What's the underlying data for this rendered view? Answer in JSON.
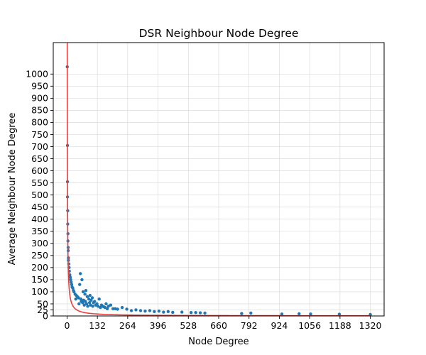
{
  "chart_data": {
    "type": "scatter",
    "title": "DSR Neighbour Node Degree",
    "xlabel": "Node Degree",
    "ylabel": "Average Neighbour Node Degree",
    "xlim": [
      -60,
      1380
    ],
    "ylim": [
      0,
      1130
    ],
    "xticks": [
      0,
      132,
      264,
      396,
      528,
      660,
      792,
      924,
      1056,
      1188,
      1320
    ],
    "yticks": [
      0,
      25,
      50,
      100,
      150,
      200,
      250,
      300,
      350,
      400,
      450,
      500,
      550,
      600,
      650,
      700,
      750,
      800,
      850,
      900,
      950,
      1000
    ],
    "grid": true,
    "colors": {
      "points": "#1f77b4",
      "fit": "#e8403f"
    },
    "fit_curve": {
      "form": "y = a / x",
      "a": 1060
    },
    "series": [
      {
        "values": [
          [
            1,
            1030
          ],
          [
            2,
            705
          ],
          [
            2,
            555
          ],
          [
            2,
            492
          ],
          [
            3,
            435
          ],
          [
            3,
            380
          ],
          [
            4,
            340
          ],
          [
            4,
            310
          ],
          [
            5,
            283
          ],
          [
            5,
            270
          ],
          [
            6,
            240
          ],
          [
            6,
            230
          ],
          [
            8,
            215
          ],
          [
            9,
            200
          ],
          [
            10,
            185
          ],
          [
            12,
            170
          ],
          [
            14,
            160
          ],
          [
            16,
            150
          ],
          [
            18,
            140
          ],
          [
            20,
            130
          ],
          [
            22,
            120
          ],
          [
            25,
            115
          ],
          [
            28,
            105
          ],
          [
            30,
            100
          ],
          [
            35,
            90
          ],
          [
            38,
            70
          ],
          [
            40,
            85
          ],
          [
            45,
            80
          ],
          [
            50,
            75
          ],
          [
            52,
            50
          ],
          [
            55,
            130
          ],
          [
            58,
            175
          ],
          [
            60,
            70
          ],
          [
            62,
            60
          ],
          [
            65,
            150
          ],
          [
            68,
            55
          ],
          [
            70,
            100
          ],
          [
            72,
            65
          ],
          [
            75,
            45
          ],
          [
            78,
            90
          ],
          [
            80,
            60
          ],
          [
            82,
            105
          ],
          [
            85,
            50
          ],
          [
            88,
            80
          ],
          [
            90,
            40
          ],
          [
            95,
            70
          ],
          [
            98,
            55
          ],
          [
            100,
            85
          ],
          [
            102,
            45
          ],
          [
            105,
            65
          ],
          [
            110,
            75
          ],
          [
            112,
            40
          ],
          [
            115,
            55
          ],
          [
            120,
            60
          ],
          [
            125,
            45
          ],
          [
            130,
            50
          ],
          [
            135,
            40
          ],
          [
            140,
            70
          ],
          [
            145,
            35
          ],
          [
            150,
            45
          ],
          [
            155,
            40
          ],
          [
            160,
            38
          ],
          [
            165,
            35
          ],
          [
            170,
            50
          ],
          [
            175,
            30
          ],
          [
            180,
            40
          ],
          [
            190,
            45
          ],
          [
            200,
            30
          ],
          [
            210,
            30
          ],
          [
            220,
            28
          ],
          [
            240,
            35
          ],
          [
            260,
            28
          ],
          [
            280,
            22
          ],
          [
            300,
            25
          ],
          [
            320,
            22
          ],
          [
            340,
            20
          ],
          [
            360,
            22
          ],
          [
            380,
            18
          ],
          [
            400,
            20
          ],
          [
            420,
            16
          ],
          [
            440,
            18
          ],
          [
            460,
            15
          ],
          [
            500,
            16
          ],
          [
            540,
            14
          ],
          [
            560,
            14
          ],
          [
            580,
            13
          ],
          [
            600,
            12
          ],
          [
            760,
            10
          ],
          [
            800,
            12
          ],
          [
            935,
            8
          ],
          [
            1010,
            9
          ],
          [
            1060,
            8
          ],
          [
            1185,
            7
          ],
          [
            1320,
            6
          ]
        ]
      }
    ]
  }
}
